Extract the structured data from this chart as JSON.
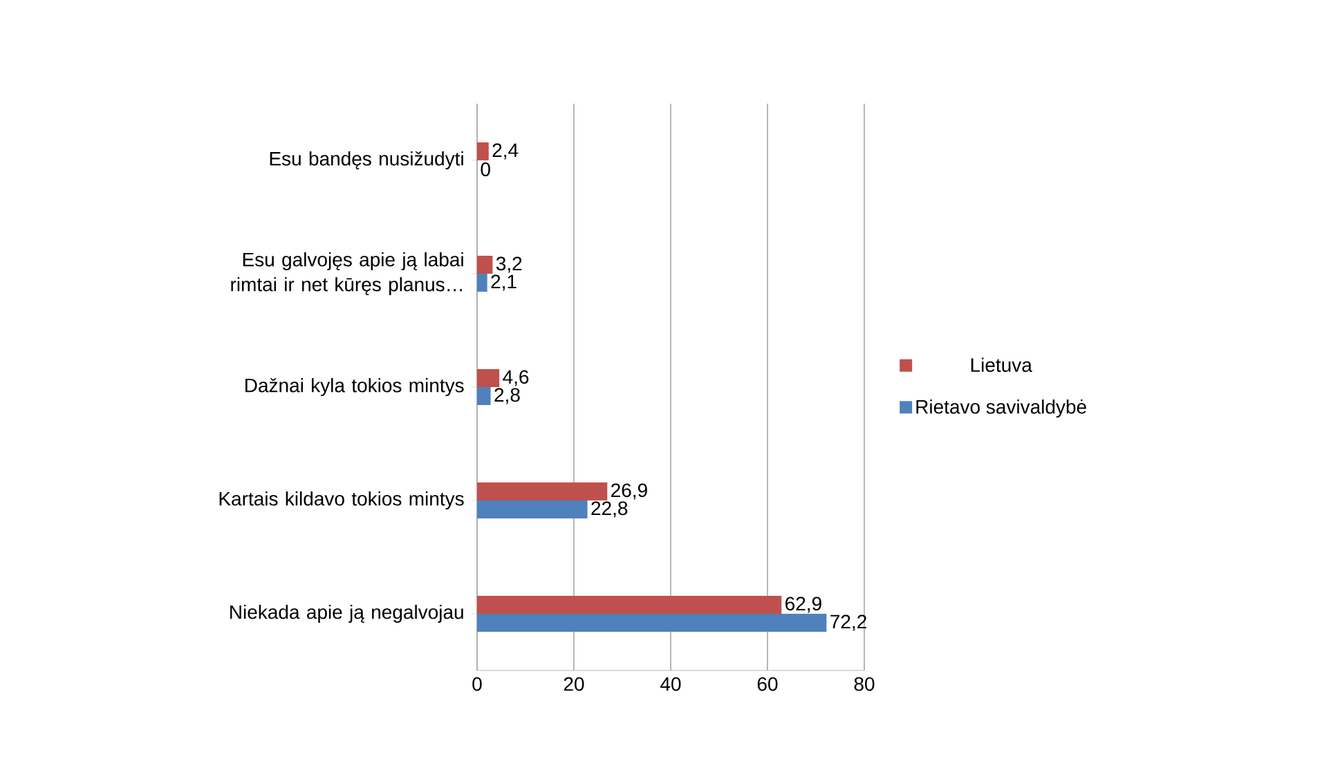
{
  "chart_data": {
    "type": "bar",
    "orientation": "horizontal",
    "categories": [
      "Esu bandęs nusižudyti",
      "Esu galvojęs apie ją labai rimtai ir net kūręs planus…",
      "Dažnai kyla tokios mintys",
      "Kartais kildavo tokios mintys",
      "Niekada apie ją negalvojau"
    ],
    "series": [
      {
        "name": "Lietuva",
        "color": "#c0504d",
        "values": [
          2.4,
          3.2,
          4.6,
          26.9,
          62.9
        ],
        "value_labels": [
          "2,4",
          "3,2",
          "4,6",
          "26,9",
          "62,9"
        ]
      },
      {
        "name": "Rietavo savivaldybė",
        "color": "#4f81bd",
        "values": [
          0,
          2.1,
          2.8,
          22.8,
          72.2
        ],
        "value_labels": [
          "0",
          "2,1",
          "2,8",
          "22,8",
          "72,2"
        ]
      }
    ],
    "xlim": [
      0,
      80
    ],
    "xticks": [
      0,
      20,
      40,
      60,
      80
    ],
    "grid": "x",
    "legend": "right"
  }
}
